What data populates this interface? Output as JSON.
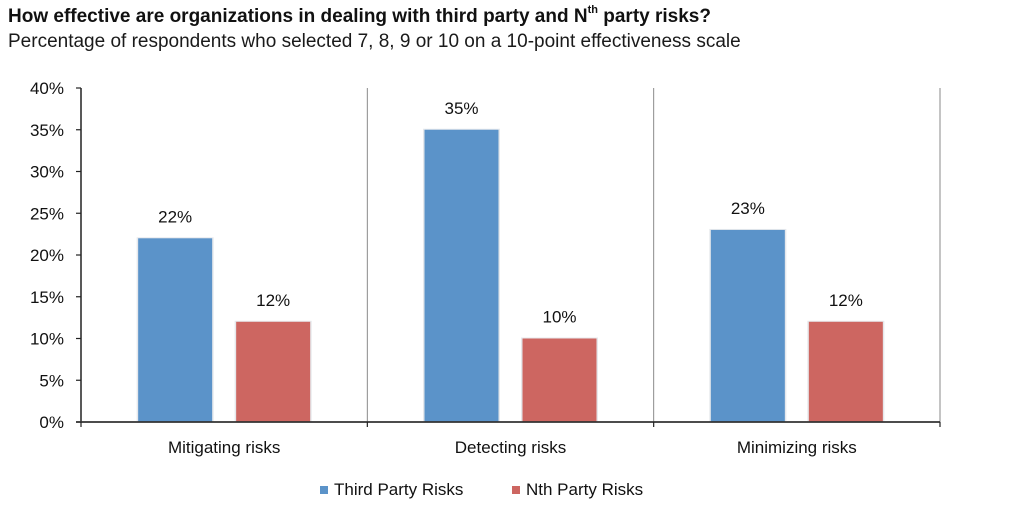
{
  "chart_data": {
    "type": "bar",
    "title_parts": {
      "before": "How effective are organizations in dealing with third party and N",
      "superscript": "th",
      "after": " party risks?"
    },
    "subtitle": "Percentage of respondents who selected 7, 8, 9 or 10 on a 10-point effectiveness scale",
    "categories": [
      "Mitigating risks",
      "Detecting risks",
      "Minimizing risks"
    ],
    "series": [
      {
        "name": "Third Party Risks",
        "color": "#5b93c9",
        "values": [
          22,
          35,
          23
        ],
        "labels": [
          "22%",
          "35%",
          "23%"
        ]
      },
      {
        "name": "Nth Party Risks",
        "color": "#cd6661",
        "values": [
          12,
          10,
          12
        ],
        "labels": [
          "12%",
          "10%",
          "12%"
        ]
      }
    ],
    "ylim": [
      0,
      40
    ],
    "yticks": [
      0,
      5,
      10,
      15,
      20,
      25,
      30,
      35,
      40
    ],
    "ytick_labels": [
      "0%",
      "5%",
      "10%",
      "15%",
      "20%",
      "25%",
      "30%",
      "35%",
      "40%"
    ],
    "xlabel": "",
    "ylabel": "",
    "grid": false,
    "category_dividers": true,
    "legend_position": "bottom-center"
  }
}
